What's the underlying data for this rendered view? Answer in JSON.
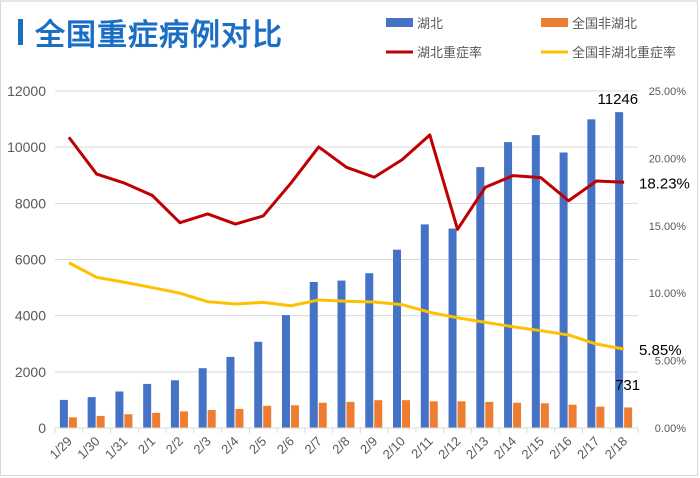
{
  "header": {
    "title": "全国重症病例对比"
  },
  "colors": {
    "title": "#1a6fc4",
    "hubei": "#4472c4",
    "non_hubei": "#ed7d31",
    "hubei_rate": "#c00000",
    "non_hubei_rate": "#ffc000",
    "grid": "#d9d9d9",
    "axis_text": "#595959"
  },
  "chart_data": {
    "type": "bar",
    "title": "全国重症病例对比",
    "categories": [
      "1/29",
      "1/30",
      "1/31",
      "2/1",
      "2/2",
      "2/3",
      "2/4",
      "2/5",
      "2/6",
      "2/7",
      "2/8",
      "2/9",
      "2/10",
      "2/11",
      "2/12",
      "2/13",
      "2/14",
      "2/15",
      "2/16",
      "2/17",
      "2/18"
    ],
    "series": [
      {
        "name": "湖北",
        "type": "bar",
        "axis": "left",
        "color": "#4472c4",
        "values": [
          1000,
          1100,
          1300,
          1570,
          1700,
          2130,
          2530,
          3070,
          4020,
          5200,
          5250,
          5510,
          6350,
          7250,
          7100,
          9290,
          10180,
          10430,
          9810,
          10990,
          11246
        ]
      },
      {
        "name": "全国非湖北",
        "type": "bar",
        "axis": "left",
        "color": "#ed7d31",
        "values": [
          380,
          430,
          490,
          540,
          590,
          640,
          680,
          790,
          810,
          900,
          930,
          990,
          990,
          950,
          950,
          930,
          900,
          880,
          830,
          760,
          731
        ]
      },
      {
        "name": "湖北重症率",
        "type": "line",
        "axis": "right",
        "color": "#c00000",
        "values": [
          21.57,
          18.84,
          18.17,
          17.26,
          15.23,
          15.88,
          15.13,
          15.73,
          18.17,
          20.85,
          19.34,
          18.6,
          19.9,
          21.74,
          14.74,
          17.86,
          18.72,
          18.57,
          16.86,
          18.32,
          18.23
        ]
      },
      {
        "name": "全国非湖北重症率",
        "type": "line",
        "axis": "right",
        "color": "#ffc000",
        "values": [
          12.26,
          11.18,
          10.81,
          10.42,
          10.0,
          9.37,
          9.2,
          9.32,
          9.07,
          9.5,
          9.4,
          9.35,
          9.15,
          8.58,
          8.18,
          7.84,
          7.51,
          7.22,
          6.9,
          6.23,
          5.85
        ]
      }
    ],
    "left_axis": {
      "ylim": [
        0,
        12000
      ],
      "ticks": [
        "0",
        "2000",
        "4000",
        "6000",
        "8000",
        "10000",
        "12000"
      ]
    },
    "right_axis": {
      "ylim": [
        0,
        25
      ],
      "ticks": [
        "0.00%",
        "5.00%",
        "10.00%",
        "15.00%",
        "20.00%",
        "25.00%"
      ]
    },
    "annotations": [
      {
        "series": "湖北",
        "category": "2/18",
        "text": "11246"
      },
      {
        "series": "全国非湖北",
        "category": "2/18",
        "text": "731"
      },
      {
        "series": "湖北重症率",
        "category": "2/18",
        "text": "18.23%"
      },
      {
        "series": "全国非湖北重症率",
        "category": "2/18",
        "text": "5.85%"
      }
    ],
    "legend": {
      "position": "top-right",
      "items": [
        "湖北",
        "全国非湖北",
        "湖北重症率",
        "全国非湖北重症率"
      ]
    },
    "grid": true,
    "xlabel": "",
    "ylabel": ""
  }
}
